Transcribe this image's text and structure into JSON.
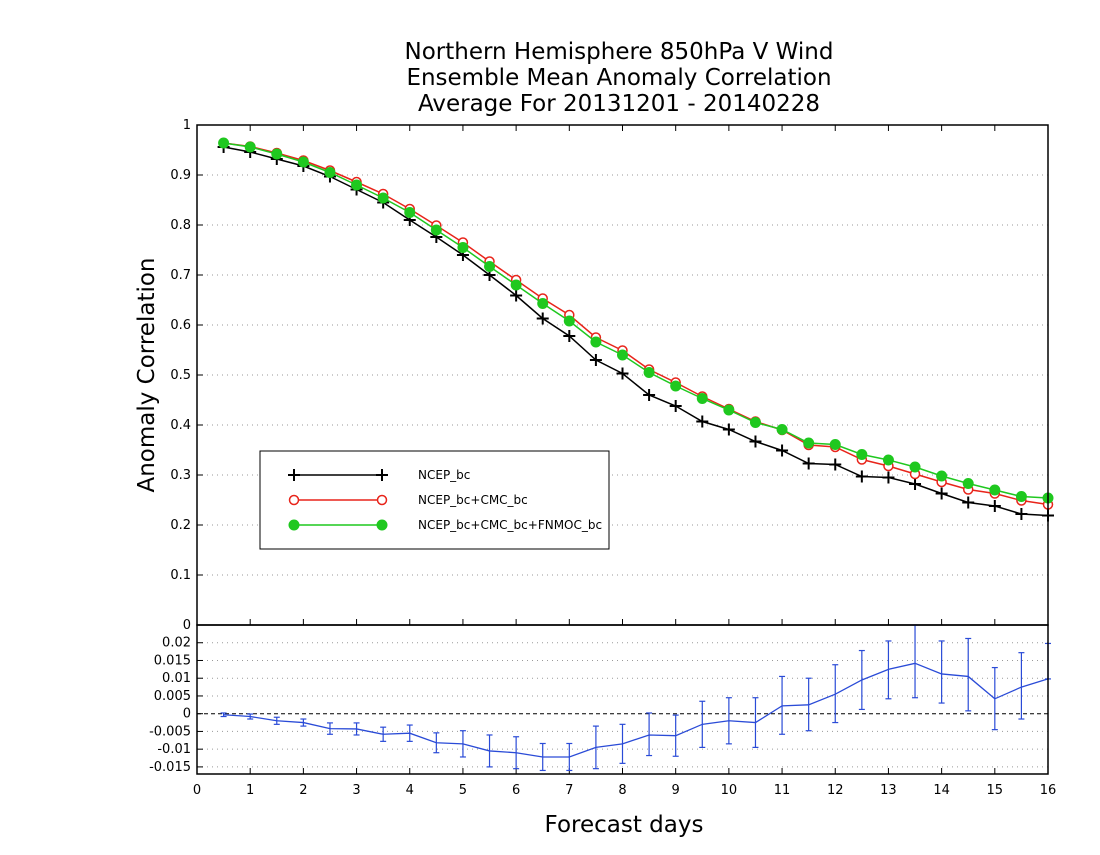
{
  "title_lines": [
    "Northern Hemisphere 850hPa V Wind",
    "Ensemble Mean Anomaly Correlation",
    "Average For 20131201 - 20140228"
  ],
  "chart_data": [
    {
      "type": "line",
      "title": "Northern Hemisphere 850hPa V Wind Ensemble Mean Anomaly Correlation Average For 20131201 - 20140228",
      "xlabel": "",
      "ylabel": "Anomaly Correlation",
      "xlim": [
        0,
        16
      ],
      "ylim": [
        0,
        1
      ],
      "yticks": [
        "0",
        "0.1",
        "0.2",
        "0.3",
        "0.4",
        "0.5",
        "0.6",
        "0.7",
        "0.8",
        "0.9",
        "1"
      ],
      "grid": true,
      "legend_placement": "center-left",
      "x": [
        0.5,
        1,
        1.5,
        2,
        2.5,
        3,
        3.5,
        4,
        4.5,
        5,
        5.5,
        6,
        6.5,
        7,
        7.5,
        8,
        8.5,
        9,
        9.5,
        10,
        10.5,
        11,
        11.5,
        12,
        12.5,
        13,
        13.5,
        14,
        14.5,
        15,
        15.5,
        16
      ],
      "series": [
        {
          "name": "NCEP_bc",
          "color": "#000000",
          "marker": "plus",
          "values": [
            0.956,
            0.946,
            0.932,
            0.918,
            0.897,
            0.871,
            0.845,
            0.81,
            0.776,
            0.74,
            0.7,
            0.659,
            0.613,
            0.578,
            0.53,
            0.503,
            0.46,
            0.438,
            0.407,
            0.391,
            0.367,
            0.349,
            0.323,
            0.321,
            0.297,
            0.295,
            0.282,
            0.263,
            0.245,
            0.238,
            0.222,
            0.219
          ]
        },
        {
          "name": "NCEP_bc+CMC_bc",
          "color": "#e8241a",
          "marker": "open-circle",
          "values": [
            0.964,
            0.957,
            0.944,
            0.929,
            0.909,
            0.886,
            0.862,
            0.832,
            0.799,
            0.765,
            0.727,
            0.69,
            0.653,
            0.62,
            0.575,
            0.549,
            0.511,
            0.485,
            0.457,
            0.432,
            0.407,
            0.39,
            0.36,
            0.356,
            0.331,
            0.318,
            0.302,
            0.286,
            0.271,
            0.263,
            0.249,
            0.241
          ]
        },
        {
          "name": "NCEP_bc+CMC_bc+FNMOC_bc",
          "color": "#1fc81f",
          "marker": "filled-circle",
          "values": [
            0.964,
            0.956,
            0.942,
            0.926,
            0.905,
            0.88,
            0.854,
            0.825,
            0.79,
            0.755,
            0.717,
            0.68,
            0.643,
            0.608,
            0.566,
            0.54,
            0.505,
            0.478,
            0.453,
            0.43,
            0.405,
            0.391,
            0.364,
            0.361,
            0.341,
            0.33,
            0.316,
            0.298,
            0.283,
            0.27,
            0.257,
            0.254
          ]
        }
      ]
    },
    {
      "type": "line",
      "xlabel": "Forecast days",
      "xlim": [
        0,
        16
      ],
      "ylim": [
        -0.017,
        0.025
      ],
      "xticks": [
        "0",
        "1",
        "2",
        "3",
        "4",
        "5",
        "6",
        "7",
        "8",
        "9",
        "10",
        "11",
        "12",
        "13",
        "14",
        "15",
        "16"
      ],
      "yticks": [
        "-0.015",
        "-0.01",
        "-0.005",
        "0",
        "0.005",
        "0.01",
        "0.015",
        "0.02"
      ],
      "grid": true,
      "series": [
        {
          "name": "",
          "color": "#2a4bd7",
          "marker": "error-bar",
          "x": [
            0.5,
            1,
            1.5,
            2,
            2.5,
            3,
            3.5,
            4,
            4.5,
            5,
            5.5,
            6,
            6.5,
            7,
            7.5,
            8,
            8.5,
            9,
            9.5,
            10,
            10.5,
            11,
            11.5,
            12,
            12.5,
            13,
            13.5,
            14,
            14.5,
            15,
            15.5,
            16
          ],
          "values": [
            -0.0003,
            -0.0008,
            -0.002,
            -0.0025,
            -0.0042,
            -0.0043,
            -0.0058,
            -0.0055,
            -0.0082,
            -0.0085,
            -0.0105,
            -0.011,
            -0.0122,
            -0.0122,
            -0.0095,
            -0.0085,
            -0.006,
            -0.0062,
            -0.003,
            -0.002,
            -0.0025,
            0.0022,
            0.0025,
            0.0055,
            0.0095,
            0.0125,
            0.0142,
            0.0112,
            0.0105,
            0.0042,
            0.0075,
            0.0098
          ],
          "lower": [
            -0.0008,
            -0.0015,
            -0.003,
            -0.0035,
            -0.0058,
            -0.006,
            -0.0078,
            -0.0078,
            -0.011,
            -0.0122,
            -0.015,
            -0.0155,
            -0.016,
            -0.016,
            -0.0155,
            -0.014,
            -0.0118,
            -0.012,
            -0.0095,
            -0.0085,
            -0.0095,
            -0.0058,
            -0.0048,
            -0.0025,
            0.0012,
            0.0042,
            0.0045,
            0.003,
            0.0008,
            -0.0045,
            -0.0015,
            0.0098
          ],
          "upper": [
            0.0002,
            -0.0001,
            -0.001,
            -0.0015,
            -0.0026,
            -0.0026,
            -0.0038,
            -0.0032,
            -0.0054,
            -0.0048,
            -0.006,
            -0.0065,
            -0.0084,
            -0.0084,
            -0.0035,
            -0.003,
            0.0002,
            -0.0004,
            0.0035,
            0.0045,
            0.0045,
            0.0105,
            0.01,
            0.0138,
            0.0178,
            0.0205,
            0.025,
            0.0205,
            0.0212,
            0.013,
            0.0172,
            0.0198
          ]
        }
      ]
    }
  ]
}
